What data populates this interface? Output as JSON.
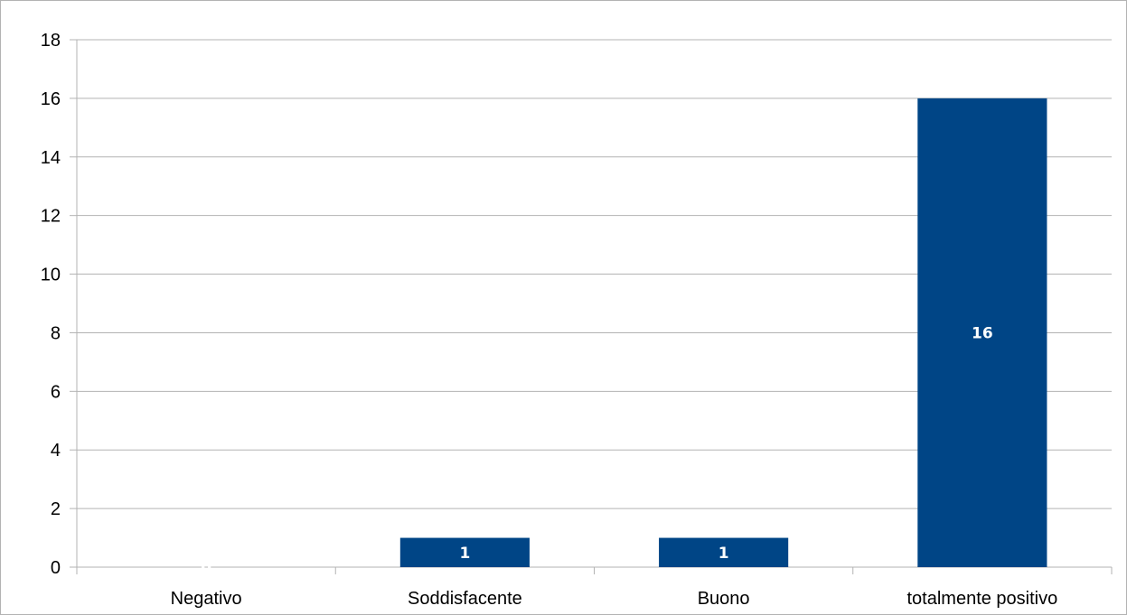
{
  "chart_data": {
    "type": "bar",
    "categories": [
      "Negativo",
      "Soddisfacente",
      "Buono",
      "totalmente positivo"
    ],
    "values": [
      0,
      1,
      1,
      16
    ],
    "data_labels": [
      "0",
      "1",
      "1",
      "16"
    ],
    "ylim": [
      0,
      18
    ],
    "yticks": [
      "0",
      "2",
      "4",
      "6",
      "8",
      "10",
      "12",
      "14",
      "16",
      "18"
    ],
    "grid": true,
    "legend": "none",
    "colors": {
      "bar": "#004586",
      "grid": "#b3b3b3",
      "axis": "#b3b3b3",
      "data_label": "#ffffff"
    }
  }
}
